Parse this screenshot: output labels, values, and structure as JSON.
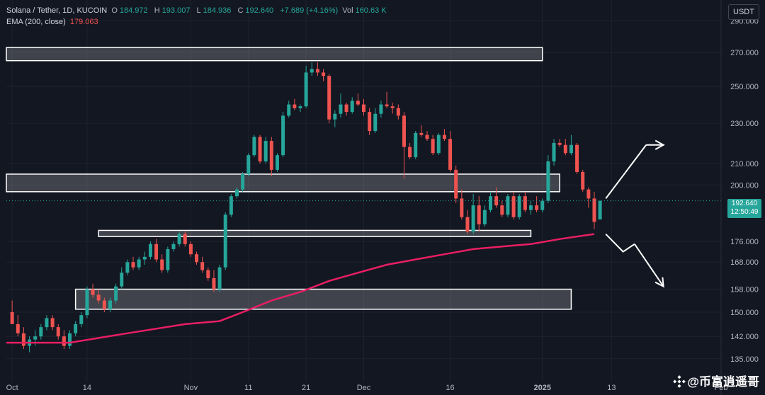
{
  "header": {
    "symbol": "Solana / Tether, 1D, KUCOIN",
    "ohlc": [
      {
        "label": "O",
        "value": "184.972"
      },
      {
        "label": "H",
        "value": "193.007"
      },
      {
        "label": "L",
        "value": "184.936"
      },
      {
        "label": "C",
        "value": "192.640"
      }
    ],
    "change": "+7.689 (+4.16%)",
    "vol_label": "Vol",
    "vol_value": "160.63 K",
    "ema_label": "EMA (200, close)",
    "ema_value": "179.063"
  },
  "currency_button": "USDT",
  "price_label": {
    "price": "192.640",
    "countdown": "12:50:49"
  },
  "watermark": "@币富逍遥哥",
  "colors": {
    "background": "#131722",
    "up": "#26a69a",
    "down": "#ef5350",
    "ema": "#e91e63",
    "zone": "#c8c9cc",
    "arrow": "#ffffff"
  },
  "chart_data": {
    "type": "candlestick",
    "title": "Solana / Tether, 1D, KUCOIN",
    "y_scale": "log",
    "ylim": [
      128,
      304
    ],
    "y_ticks": [
      "135.000",
      "142.000",
      "150.000",
      "158.000",
      "168.000",
      "176.000",
      "200.000",
      "210.000",
      "230.000",
      "250.000",
      "270.000",
      "290.000"
    ],
    "x_ticks": [
      {
        "day": 0,
        "label": "Oct"
      },
      {
        "day": 13,
        "label": "14"
      },
      {
        "day": 31,
        "label": "Nov"
      },
      {
        "day": 41,
        "label": "11"
      },
      {
        "day": 51,
        "label": "21"
      },
      {
        "day": 61,
        "label": "Dec"
      },
      {
        "day": 76,
        "label": "16"
      },
      {
        "day": 92,
        "label": "2025"
      },
      {
        "day": 104,
        "label": "13"
      },
      {
        "day": 123,
        "label": "Feb"
      }
    ],
    "x_range_days": [
      -1,
      123
    ],
    "candles": [
      [
        0,
        150,
        154,
        146,
        146
      ],
      [
        1,
        146,
        149,
        142,
        143
      ],
      [
        2,
        143,
        145,
        138,
        139
      ],
      [
        3,
        139,
        142,
        137,
        141
      ],
      [
        4,
        141,
        144,
        139,
        142
      ],
      [
        5,
        142,
        146,
        141,
        145
      ],
      [
        6,
        145,
        149,
        144,
        148
      ],
      [
        7,
        148,
        149,
        144,
        145
      ],
      [
        8,
        145,
        146,
        141,
        142
      ],
      [
        9,
        142,
        144,
        138,
        139
      ],
      [
        10,
        139,
        144,
        138,
        143
      ],
      [
        11,
        143,
        147,
        142,
        146
      ],
      [
        12,
        146,
        150,
        145,
        149
      ],
      [
        13,
        149,
        159,
        148,
        158
      ],
      [
        14,
        158,
        160,
        155,
        156
      ],
      [
        15,
        156,
        158,
        153,
        154
      ],
      [
        16,
        154,
        155,
        150,
        151
      ],
      [
        17,
        151,
        155,
        150,
        154
      ],
      [
        18,
        154,
        160,
        153,
        159
      ],
      [
        19,
        159,
        166,
        158,
        164
      ],
      [
        20,
        164,
        169,
        163,
        168
      ],
      [
        21,
        168,
        170,
        165,
        166
      ],
      [
        22,
        166,
        170,
        165,
        169
      ],
      [
        23,
        169,
        172,
        167,
        170
      ],
      [
        24,
        170,
        176,
        169,
        175
      ],
      [
        25,
        175,
        177,
        168,
        169
      ],
      [
        26,
        169,
        171,
        164,
        165
      ],
      [
        27,
        165,
        174,
        164,
        173
      ],
      [
        28,
        173,
        176,
        172,
        175
      ],
      [
        29,
        175,
        180,
        174,
        179
      ],
      [
        30,
        179,
        180,
        174,
        175
      ],
      [
        31,
        175,
        176,
        170,
        171
      ],
      [
        32,
        171,
        172,
        167,
        168
      ],
      [
        33,
        168,
        170,
        164,
        165
      ],
      [
        34,
        165,
        166,
        161,
        162
      ],
      [
        35,
        162,
        165,
        157,
        158
      ],
      [
        36,
        158,
        167,
        157,
        166
      ],
      [
        37,
        166,
        188,
        165,
        187
      ],
      [
        38,
        187,
        196,
        186,
        195
      ],
      [
        39,
        195,
        199,
        194,
        198
      ],
      [
        40,
        198,
        206,
        197,
        205
      ],
      [
        41,
        205,
        215,
        204,
        214
      ],
      [
        42,
        214,
        224,
        213,
        223
      ],
      [
        43,
        223,
        224,
        210,
        211
      ],
      [
        44,
        211,
        223,
        210,
        221
      ],
      [
        45,
        221,
        223,
        204,
        207
      ],
      [
        46,
        207,
        215,
        206,
        214
      ],
      [
        47,
        214,
        236,
        213,
        234
      ],
      [
        48,
        234,
        242,
        233,
        240
      ],
      [
        49,
        240,
        243,
        237,
        238
      ],
      [
        50,
        238,
        240,
        236,
        239
      ],
      [
        51,
        239,
        262,
        238,
        258
      ],
      [
        52,
        258,
        264,
        256,
        260
      ],
      [
        53,
        260,
        264,
        256,
        258
      ],
      [
        54,
        258,
        260,
        253,
        256
      ],
      [
        55,
        256,
        257,
        230,
        232
      ],
      [
        56,
        232,
        237,
        228,
        235
      ],
      [
        57,
        235,
        246,
        233,
        240
      ],
      [
        58,
        240,
        241,
        234,
        236
      ],
      [
        59,
        236,
        244,
        235,
        242
      ],
      [
        60,
        242,
        246,
        239,
        240
      ],
      [
        61,
        240,
        243,
        234,
        236
      ],
      [
        62,
        236,
        238,
        224,
        226
      ],
      [
        63,
        226,
        238,
        225,
        235
      ],
      [
        64,
        235,
        242,
        233,
        240
      ],
      [
        65,
        240,
        247,
        238,
        239
      ],
      [
        66,
        239,
        241,
        235,
        238
      ],
      [
        67,
        238,
        240,
        232,
        234
      ],
      [
        68,
        234,
        236,
        203,
        218
      ],
      [
        69,
        218,
        220,
        212,
        213
      ],
      [
        70,
        213,
        226,
        212,
        225
      ],
      [
        71,
        225,
        229,
        223,
        224
      ],
      [
        72,
        224,
        226,
        221,
        222
      ],
      [
        73,
        222,
        224,
        214,
        215
      ],
      [
        74,
        215,
        225,
        214,
        224
      ],
      [
        75,
        224,
        227,
        221,
        222
      ],
      [
        76,
        222,
        226,
        206,
        207
      ],
      [
        77,
        207,
        209,
        192,
        194
      ],
      [
        78,
        194,
        198,
        185,
        186
      ],
      [
        79,
        186,
        189,
        179,
        180
      ],
      [
        80,
        180,
        196,
        179,
        191
      ],
      [
        81,
        191,
        195,
        180,
        183
      ],
      [
        82,
        183,
        191,
        182,
        189
      ],
      [
        83,
        189,
        197,
        188,
        195
      ],
      [
        84,
        195,
        199,
        190,
        191
      ],
      [
        85,
        191,
        193,
        186,
        187
      ],
      [
        86,
        187,
        196,
        186,
        195
      ],
      [
        87,
        195,
        197,
        185,
        186
      ],
      [
        88,
        186,
        196,
        185,
        195
      ],
      [
        89,
        195,
        197,
        188,
        189
      ],
      [
        90,
        189,
        193,
        187,
        191
      ],
      [
        91,
        191,
        195,
        188,
        189
      ],
      [
        92,
        189,
        194,
        188,
        193
      ],
      [
        93,
        193,
        214,
        192,
        211
      ],
      [
        94,
        211,
        222,
        209,
        220
      ],
      [
        95,
        220,
        222,
        218,
        219
      ],
      [
        96,
        219,
        222,
        214,
        215
      ],
      [
        97,
        215,
        224,
        214,
        219
      ],
      [
        98,
        219,
        220,
        205,
        206
      ],
      [
        99,
        206,
        207,
        197,
        198
      ],
      [
        100,
        198,
        199,
        190,
        194
      ],
      [
        101,
        194,
        197,
        181,
        184
      ],
      [
        102,
        185,
        193,
        185,
        193
      ]
    ],
    "ema_200": [
      [
        -1,
        140
      ],
      [
        10,
        140
      ],
      [
        20,
        143
      ],
      [
        30,
        146
      ],
      [
        36,
        147
      ],
      [
        40,
        150
      ],
      [
        45,
        154
      ],
      [
        50,
        157
      ],
      [
        55,
        161
      ],
      [
        60,
        164
      ],
      [
        65,
        167
      ],
      [
        70,
        169
      ],
      [
        75,
        171
      ],
      [
        80,
        173
      ],
      [
        85,
        174
      ],
      [
        90,
        175
      ],
      [
        95,
        177
      ],
      [
        101,
        179
      ]
    ],
    "zones": [
      {
        "x0": -1,
        "x1": 92,
        "y0": 265,
        "y1": 273
      },
      {
        "x0": -1,
        "x1": 95,
        "y0": 197,
        "y1": 205
      },
      {
        "x0": 15,
        "x1": 90,
        "y0": 178,
        "y1": 180.5
      },
      {
        "x0": 11,
        "x1": 97,
        "y0": 151,
        "y1": 158
      }
    ],
    "arrows": [
      {
        "points": [
          [
            103,
            194
          ],
          [
            110,
            219
          ],
          [
            113,
            219
          ]
        ]
      },
      {
        "points": [
          [
            103,
            179
          ],
          [
            106,
            172
          ],
          [
            108,
            175
          ],
          [
            113,
            159
          ]
        ]
      }
    ]
  }
}
